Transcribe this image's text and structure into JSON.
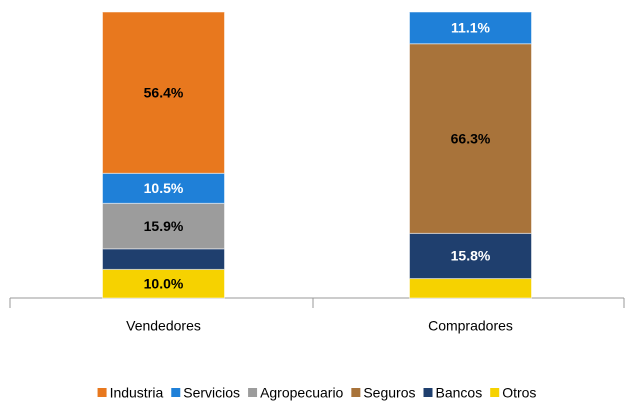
{
  "chart_data": {
    "type": "stacked_bar",
    "categories": [
      "Vendedores",
      "Compradores"
    ],
    "series": [
      {
        "name": "Industria",
        "color": "#e8781e",
        "label_color": "#000000",
        "values": [
          56.4,
          0
        ],
        "value_labels": [
          "56.4%",
          null
        ]
      },
      {
        "name": "Servicios",
        "color": "#1f80d8",
        "label_color": "#ffffff",
        "values": [
          10.5,
          11.1
        ],
        "value_labels": [
          "10.5%",
          "11.1%"
        ]
      },
      {
        "name": "Agropecuario",
        "color": "#9c9c9c",
        "label_color": "#000000",
        "values": [
          15.9,
          0
        ],
        "value_labels": [
          "15.9%",
          null
        ]
      },
      {
        "name": "Seguros",
        "color": "#a8733a",
        "label_color": "#000000",
        "values": [
          0,
          66.3
        ],
        "value_labels": [
          null,
          "66.3%"
        ]
      },
      {
        "name": "Bancos",
        "color": "#1f3f6e",
        "label_color": "#ffffff",
        "values": [
          7.2,
          15.8
        ],
        "value_labels": [
          null,
          "15.8%"
        ]
      },
      {
        "name": "Otros",
        "color": "#f6d200",
        "label_color": "#000000",
        "values": [
          10.0,
          6.8
        ],
        "value_labels": [
          "10.0%",
          null
        ]
      }
    ]
  }
}
